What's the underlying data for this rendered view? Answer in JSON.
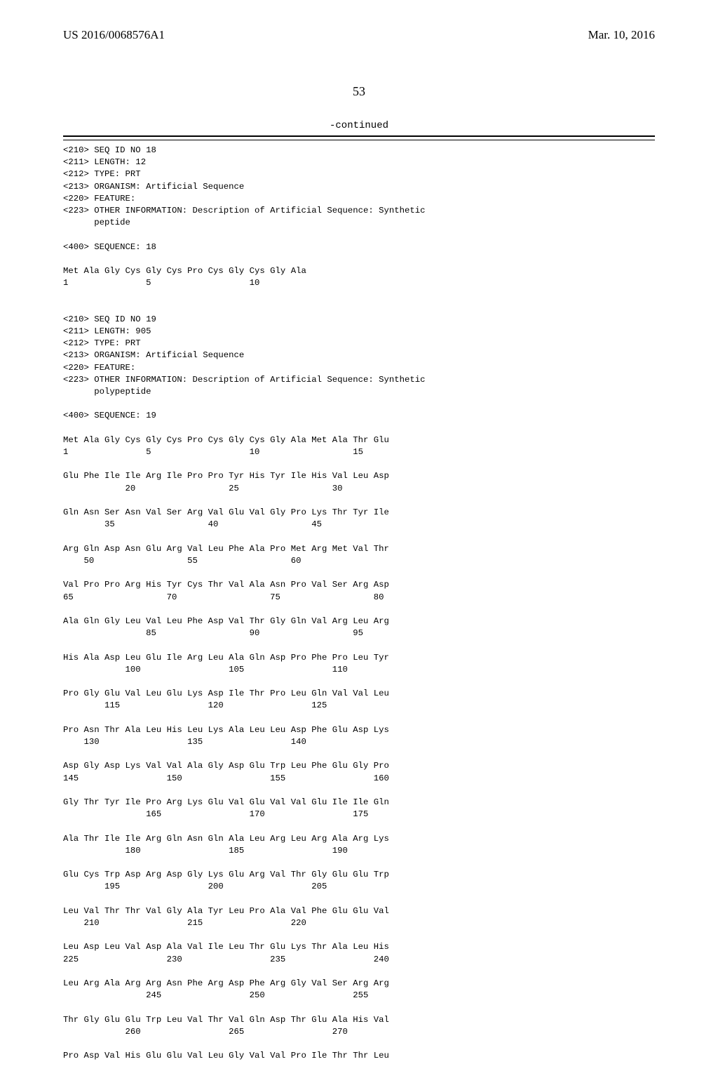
{
  "header": {
    "left": "US 2016/0068576A1",
    "right": "Mar. 10, 2016"
  },
  "page_number": "53",
  "continued_label": "-continued",
  "seq18": {
    "l1": "<210> SEQ ID NO 18",
    "l2": "<211> LENGTH: 12",
    "l3": "<212> TYPE: PRT",
    "l4": "<213> ORGANISM: Artificial Sequence",
    "l5": "<220> FEATURE:",
    "l6": "<223> OTHER INFORMATION: Description of Artificial Sequence: Synthetic",
    "l7": "      peptide",
    "l8": "<400> SEQUENCE: 18",
    "s1": "Met Ala Gly Cys Gly Cys Pro Cys Gly Cys Gly Ala",
    "s2": "1               5                   10"
  },
  "seq19h": {
    "l1": "<210> SEQ ID NO 19",
    "l2": "<211> LENGTH: 905",
    "l3": "<212> TYPE: PRT",
    "l4": "<213> ORGANISM: Artificial Sequence",
    "l5": "<220> FEATURE:",
    "l6": "<223> OTHER INFORMATION: Description of Artificial Sequence: Synthetic",
    "l7": "      polypeptide",
    "l8": "<400> SEQUENCE: 19"
  },
  "rows": {
    "r1a": "Met Ala Gly Cys Gly Cys Pro Cys Gly Cys Gly Ala Met Ala Thr Glu",
    "r1b": "1               5                   10                  15",
    "r2a": "Glu Phe Ile Ile Arg Ile Pro Pro Tyr His Tyr Ile His Val Leu Asp",
    "r2b": "            20                  25                  30",
    "r3a": "Gln Asn Ser Asn Val Ser Arg Val Glu Val Gly Pro Lys Thr Tyr Ile",
    "r3b": "        35                  40                  45",
    "r4a": "Arg Gln Asp Asn Glu Arg Val Leu Phe Ala Pro Met Arg Met Val Thr",
    "r4b": "    50                  55                  60",
    "r5a": "Val Pro Pro Arg His Tyr Cys Thr Val Ala Asn Pro Val Ser Arg Asp",
    "r5b": "65                  70                  75                  80",
    "r6a": "Ala Gln Gly Leu Val Leu Phe Asp Val Thr Gly Gln Val Arg Leu Arg",
    "r6b": "                85                  90                  95",
    "r7a": "His Ala Asp Leu Glu Ile Arg Leu Ala Gln Asp Pro Phe Pro Leu Tyr",
    "r7b": "            100                 105                 110",
    "r8a": "Pro Gly Glu Val Leu Glu Lys Asp Ile Thr Pro Leu Gln Val Val Leu",
    "r8b": "        115                 120                 125",
    "r9a": "Pro Asn Thr Ala Leu His Leu Lys Ala Leu Leu Asp Phe Glu Asp Lys",
    "r9b": "    130                 135                 140",
    "r10a": "Asp Gly Asp Lys Val Val Ala Gly Asp Glu Trp Leu Phe Glu Gly Pro",
    "r10b": "145                 150                 155                 160",
    "r11a": "Gly Thr Tyr Ile Pro Arg Lys Glu Val Glu Val Val Glu Ile Ile Gln",
    "r11b": "                165                 170                 175",
    "r12a": "Ala Thr Ile Ile Arg Gln Asn Gln Ala Leu Arg Leu Arg Ala Arg Lys",
    "r12b": "            180                 185                 190",
    "r13a": "Glu Cys Trp Asp Arg Asp Gly Lys Glu Arg Val Thr Gly Glu Glu Trp",
    "r13b": "        195                 200                 205",
    "r14a": "Leu Val Thr Thr Val Gly Ala Tyr Leu Pro Ala Val Phe Glu Glu Val",
    "r14b": "    210                 215                 220",
    "r15a": "Leu Asp Leu Val Asp Ala Val Ile Leu Thr Glu Lys Thr Ala Leu His",
    "r15b": "225                 230                 235                 240",
    "r16a": "Leu Arg Ala Arg Arg Asn Phe Arg Asp Phe Arg Gly Val Ser Arg Arg",
    "r16b": "                245                 250                 255",
    "r17a": "Thr Gly Glu Glu Trp Leu Val Thr Val Gln Asp Thr Glu Ala His Val",
    "r17b": "            260                 265                 270",
    "r18a": "Pro Asp Val His Glu Glu Val Leu Gly Val Val Pro Ile Thr Thr Leu"
  }
}
